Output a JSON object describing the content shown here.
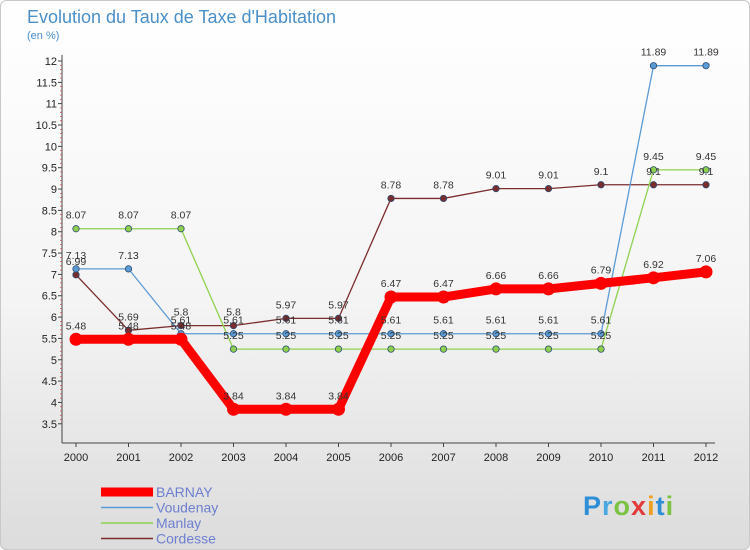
{
  "header": {
    "title": "Evolution du Taux de Taxe d'Habitation",
    "subtitle": "(en %)"
  },
  "logo": {
    "text": "Proxiti",
    "letters": [
      {
        "char": "P",
        "color": "#2f8fd6"
      },
      {
        "char": "r",
        "color": "#4aa8e0"
      },
      {
        "char": "o",
        "color": "#7cc243"
      },
      {
        "char": "x",
        "color": "#e23b3b"
      },
      {
        "char": "i",
        "color": "#f0a020"
      },
      {
        "char": "t",
        "color": "#2f8fd6"
      },
      {
        "char": "i",
        "color": "#7cc243"
      }
    ]
  },
  "chart_data": {
    "type": "line",
    "title": "Evolution du Taux de Taxe d'Habitation",
    "ylabel": "(en %)",
    "xlabel": "",
    "x": [
      "2000",
      "2001",
      "2002",
      "2003",
      "2004",
      "2005",
      "2006",
      "2007",
      "2008",
      "2009",
      "2010",
      "2011",
      "2012"
    ],
    "ylim": [
      3.5,
      12
    ],
    "yticks": [
      "3.5",
      "4",
      "4.5",
      "5",
      "5.5",
      "6",
      "6.5",
      "7",
      "7.5",
      "8",
      "8.5",
      "9",
      "9.5",
      "10",
      "10.5",
      "11",
      "11.5",
      "12"
    ],
    "grid": false,
    "legend_position": "bottom-left",
    "series": [
      {
        "name": "BARNAY",
        "color": "#ff0000",
        "values": [
          5.48,
          5.48,
          5.48,
          3.84,
          3.84,
          3.84,
          6.47,
          6.47,
          6.66,
          6.66,
          6.79,
          6.92,
          7.06
        ],
        "labels": [
          "5.48",
          "5.48",
          "5.48",
          "3.84",
          "3.84",
          "3.84",
          "6.47",
          "6.47",
          "6.66",
          "6.66",
          "6.79",
          "6.92",
          "7.06"
        ]
      },
      {
        "name": "Voudenay",
        "color": "#5b9bd5",
        "values": [
          7.13,
          7.13,
          5.61,
          5.61,
          5.61,
          5.61,
          5.61,
          5.61,
          5.61,
          5.61,
          5.61,
          11.89,
          11.89
        ],
        "labels": [
          "7.13",
          "7.13",
          "5.61",
          "5.61",
          "5.61",
          "5.61",
          "5.61",
          "5.61",
          "5.61",
          "5.61",
          "5.61",
          "11.89",
          "11.89"
        ]
      },
      {
        "name": "Manlay",
        "color": "#8fd14f",
        "values": [
          8.07,
          8.07,
          8.07,
          5.25,
          5.25,
          5.25,
          5.25,
          5.25,
          5.25,
          5.25,
          5.25,
          9.45,
          9.45
        ],
        "labels": [
          "8.07",
          "8.07",
          "8.07",
          "5.25",
          "5.25",
          "5.25",
          "5.25",
          "5.25",
          "5.25",
          "5.25",
          "5.25",
          "9.45",
          "9.45"
        ]
      },
      {
        "name": "Cordesse",
        "color": "#7b2d2d",
        "values": [
          6.99,
          5.69,
          5.8,
          5.8,
          5.97,
          5.97,
          8.78,
          8.78,
          9.01,
          9.01,
          9.1,
          9.1,
          9.1
        ],
        "labels": [
          "6.99",
          "5.69",
          "5.8",
          "5.8",
          "5.97",
          "5.97",
          "8.78",
          "8.78",
          "9.01",
          "9.01",
          "9.1",
          "9.1",
          "9.1"
        ]
      }
    ]
  }
}
